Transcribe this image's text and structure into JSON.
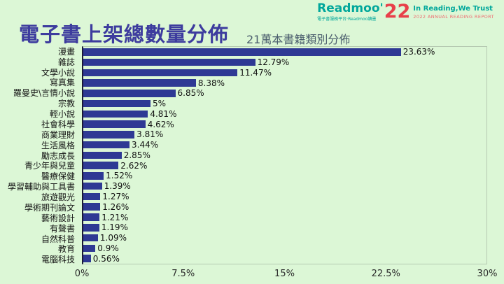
{
  "header": {
    "title": "電子書上架總數量分佈",
    "subtitle": "21萬本書籍類別分佈"
  },
  "logo": {
    "brand": "Readmoo'",
    "year": "22",
    "slogan": "In Reading,We Trust",
    "report": "2022 ANNUAL READING REPORT",
    "tagline": "電子書服務平台·Readmoo讀墨",
    "teal": "#00a79b",
    "red": "#e8404a"
  },
  "chart_data": {
    "type": "bar",
    "orientation": "horizontal",
    "title": "電子書上架總數量分佈",
    "subtitle": "21萬本書籍類別分佈",
    "categories": [
      "漫畫",
      "雜誌",
      "文學小說",
      "寫真集",
      "羅曼史\\言情小說",
      "宗教",
      "輕小說",
      "社會科學",
      "商業理財",
      "生活風格",
      "勵志成長",
      "青少年與兒童",
      "醫療保健",
      "學習輔助與工具書",
      "旅遊觀光",
      "學術期刊論文",
      "藝術設計",
      "有聲書",
      "自然科普",
      "教育",
      "電腦科技"
    ],
    "values": [
      23.63,
      12.79,
      11.47,
      8.38,
      6.85,
      5,
      4.81,
      4.62,
      3.81,
      3.44,
      2.85,
      2.62,
      1.52,
      1.39,
      1.27,
      1.26,
      1.21,
      1.19,
      1.09,
      0.9,
      0.56
    ],
    "value_labels": [
      "23.63%",
      "12.79%",
      "11.47%",
      "8.38%",
      "6.85%",
      "5%",
      "4.81%",
      "4.62%",
      "3.81%",
      "3.44%",
      "2.85%",
      "2.62%",
      "1.52%",
      "1.39%",
      "1.27%",
      "1.26%",
      "1.21%",
      "1.19%",
      "1.09%",
      "0.9%",
      "0.56%"
    ],
    "xlim": [
      0,
      30
    ],
    "x_ticks": [
      "0%",
      "7.5%",
      "15%",
      "22.5%",
      "30%"
    ],
    "bar_color": "#2e3994",
    "background": "#dcf7d6",
    "grid": false,
    "legend": false
  }
}
